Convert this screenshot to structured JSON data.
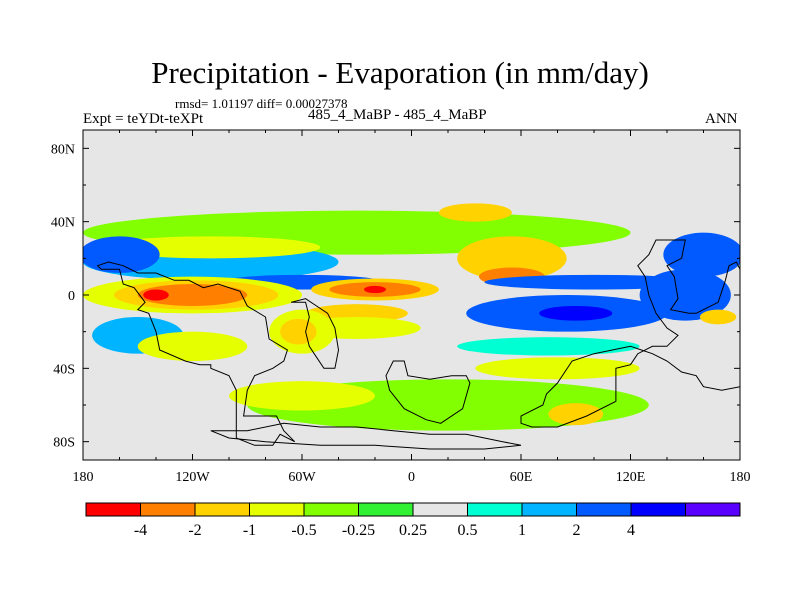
{
  "chart_data": {
    "type": "filled-contour map",
    "title": "Precipitation - Evaporation (in mm/day)",
    "stats_line": "rmsd= 1.01197 diff= 0.00027378",
    "left_label": "Expt = teYDt-teXPt",
    "center_label": "485_4_MaBP - 485_4_MaBP",
    "right_label": "ANN",
    "x_ticks": [
      {
        "lon": -180,
        "label": "180"
      },
      {
        "lon": -120,
        "label": "120W"
      },
      {
        "lon": -60,
        "label": "60W"
      },
      {
        "lon": 0,
        "label": "0"
      },
      {
        "lon": 60,
        "label": "60E"
      },
      {
        "lon": 120,
        "label": "120E"
      },
      {
        "lon": 180,
        "label": "180"
      }
    ],
    "y_ticks": [
      {
        "lat": 80,
        "label": "80N"
      },
      {
        "lat": 40,
        "label": "40N"
      },
      {
        "lat": 0,
        "label": "0"
      },
      {
        "lat": -40,
        "label": "40S"
      },
      {
        "lat": -80,
        "label": "80S"
      }
    ],
    "xlim": [
      -180,
      180
    ],
    "ylim": [
      -90,
      90
    ],
    "colorbar": {
      "colors": [
        "#ff0000",
        "#ff8000",
        "#ffd200",
        "#e6ff00",
        "#82ff00",
        "#32f032",
        "#e6e6e6",
        "#00ffd2",
        "#00b4ff",
        "#005aff",
        "#0000ff",
        "#5a00ff"
      ],
      "labels": [
        "-4",
        "-2",
        "-1",
        "-0.5",
        "-0.25",
        "0.25",
        "0.5",
        "1",
        "2",
        "4"
      ]
    },
    "regions": [
      {
        "name": "region-nh-green-band",
        "level": -0.25,
        "lon": -30,
        "lat": 34,
        "rlon": 150,
        "rlat": 12
      },
      {
        "name": "region-nh-tropics-blue",
        "level": 1,
        "lon": -110,
        "lat": 18,
        "rlon": 70,
        "rlat": 10
      },
      {
        "name": "region-nh-subtropic-green",
        "level": -0.5,
        "lon": -110,
        "lat": 26,
        "rlon": 60,
        "rlat": 6
      },
      {
        "name": "region-np-blue-west",
        "level": 2,
        "lon": -160,
        "lat": 22,
        "rlon": 22,
        "rlat": 10
      },
      {
        "name": "region-np-blue-east",
        "level": 2,
        "lon": 160,
        "lat": 22,
        "rlon": 22,
        "rlat": 12
      },
      {
        "name": "region-north-atlantic-yellow",
        "level": -1,
        "lon": 55,
        "lat": 20,
        "rlon": 30,
        "rlat": 12
      },
      {
        "name": "region-north-atlantic-orange",
        "level": -2,
        "lon": 55,
        "lat": 10,
        "rlon": 18,
        "rlat": 5
      },
      {
        "name": "region-arctic-yellow",
        "level": -1,
        "lon": 35,
        "lat": 45,
        "rlon": 20,
        "rlat": 5
      },
      {
        "name": "region-itcz-blue-west",
        "level": 2,
        "lon": -60,
        "lat": 7,
        "rlon": 45,
        "rlat": 4
      },
      {
        "name": "region-itcz-blue-east",
        "level": 2,
        "lon": 100,
        "lat": 7,
        "rlon": 60,
        "rlat": 4
      },
      {
        "name": "region-pacific-dry-green",
        "level": -0.5,
        "lon": -120,
        "lat": 0,
        "rlon": 60,
        "rlat": 10
      },
      {
        "name": "region-pacific-dry-yellow",
        "level": -1,
        "lon": -118,
        "lat": 0,
        "rlon": 45,
        "rlat": 8
      },
      {
        "name": "region-pacific-dry-orange",
        "level": -2,
        "lon": -120,
        "lat": 0,
        "rlon": 30,
        "rlat": 6
      },
      {
        "name": "region-pacific-dry-red",
        "level": -4,
        "lon": -140,
        "lat": 0,
        "rlon": 7,
        "rlat": 3
      },
      {
        "name": "region-atlantic-eq-yellow",
        "level": -1,
        "lon": -20,
        "lat": 3,
        "rlon": 35,
        "rlat": 6
      },
      {
        "name": "region-atlantic-eq-orange",
        "level": -2,
        "lon": -20,
        "lat": 3,
        "rlon": 25,
        "rlat": 4
      },
      {
        "name": "region-atlantic-eq-red",
        "level": -4,
        "lon": -20,
        "lat": 3,
        "rlon": 6,
        "rlat": 2
      },
      {
        "name": "region-south-atlantic-yellow",
        "level": -1,
        "lon": -30,
        "lat": -10,
        "rlon": 28,
        "rlat": 5
      },
      {
        "name": "region-south-atlantic-green",
        "level": -0.5,
        "lon": -30,
        "lat": -18,
        "rlon": 35,
        "rlat": 6
      },
      {
        "name": "region-indian-blue",
        "level": 2,
        "lon": 85,
        "lat": -10,
        "rlon": 55,
        "rlat": 10
      },
      {
        "name": "region-indian-darkblue",
        "level": 3,
        "lon": 90,
        "lat": -10,
        "rlon": 38,
        "rlat": 7
      },
      {
        "name": "region-indian-purple",
        "level": 5,
        "lon": 90,
        "lat": -10,
        "rlon": 20,
        "rlat": 4
      },
      {
        "name": "region-indian-cyan",
        "level": 0.5,
        "lon": 75,
        "lat": -28,
        "rlon": 50,
        "rlat": 5
      },
      {
        "name": "region-south-indian-green",
        "level": -0.5,
        "lon": 80,
        "lat": -40,
        "rlon": 45,
        "rlat": 6
      },
      {
        "name": "region-south-pacific-blue",
        "level": 1,
        "lon": -150,
        "lat": -22,
        "rlon": 25,
        "rlat": 10
      },
      {
        "name": "region-south-pacific-green",
        "level": -0.5,
        "lon": -120,
        "lat": -28,
        "rlon": 30,
        "rlat": 8
      },
      {
        "name": "region-southern-ocean-green",
        "level": -0.25,
        "lon": 20,
        "lat": -60,
        "rlon": 110,
        "rlat": 14
      },
      {
        "name": "region-southern-ocean-yellow",
        "level": -1,
        "lon": 90,
        "lat": -65,
        "rlon": 15,
        "rlat": 6
      },
      {
        "name": "region-south-mid-green",
        "level": -0.5,
        "lon": -60,
        "lat": -55,
        "rlon": 40,
        "rlat": 8
      },
      {
        "name": "region-africa-green",
        "level": -0.5,
        "lon": -60,
        "lat": -20,
        "rlon": 18,
        "rlat": 12
      },
      {
        "name": "region-africa-yellow",
        "level": -1,
        "lon": -62,
        "lat": -20,
        "rlon": 10,
        "rlat": 7
      },
      {
        "name": "region-east-pacific-blue",
        "level": 2,
        "lon": 150,
        "lat": 0,
        "rlon": 25,
        "rlat": 14
      },
      {
        "name": "region-east-pacific-yellow",
        "level": -1,
        "lon": 168,
        "lat": -12,
        "rlon": 10,
        "rlat": 4
      }
    ],
    "continents": [
      {
        "name": "continent-north-america",
        "pts": [
          [
            -170,
            14
          ],
          [
            -160,
            14
          ],
          [
            -158,
            6
          ],
          [
            -152,
            4
          ],
          [
            -146,
            -4
          ],
          [
            -150,
            -8
          ],
          [
            -144,
            -10
          ],
          [
            -140,
            -20
          ],
          [
            -138,
            -30
          ],
          [
            -124,
            -36
          ],
          [
            -116,
            -38
          ],
          [
            -110,
            -38
          ],
          [
            -110,
            -40
          ],
          [
            -100,
            -44
          ],
          [
            -96,
            -52
          ],
          [
            -96,
            -78
          ],
          [
            -86,
            -82
          ],
          [
            -76,
            -82
          ],
          [
            -72,
            -76
          ],
          [
            -64,
            -80
          ],
          [
            -70,
            -74
          ],
          [
            -74,
            -66
          ],
          [
            -92,
            -66
          ],
          [
            -90,
            -52
          ],
          [
            -86,
            -44
          ],
          [
            -76,
            -40
          ],
          [
            -70,
            -36
          ],
          [
            -68,
            -30
          ],
          [
            -78,
            -24
          ],
          [
            -80,
            -12
          ],
          [
            -90,
            -6
          ],
          [
            -94,
            2
          ],
          [
            -106,
            6
          ],
          [
            -114,
            4
          ],
          [
            -122,
            8
          ],
          [
            -130,
            8
          ],
          [
            -140,
            12
          ],
          [
            -150,
            12
          ],
          [
            -158,
            16
          ],
          [
            -166,
            18
          ],
          [
            -172,
            16
          ]
        ]
      },
      {
        "name": "continent-south-continent",
        "pts": [
          [
            -66,
            -4
          ],
          [
            -58,
            -4
          ],
          [
            -56,
            -12
          ],
          [
            -58,
            -20
          ],
          [
            -56,
            -28
          ],
          [
            -52,
            -34
          ],
          [
            -48,
            -40
          ],
          [
            -42,
            -40
          ],
          [
            -40,
            -30
          ],
          [
            -42,
            -18
          ],
          [
            -46,
            -10
          ],
          [
            -52,
            -6
          ],
          [
            -58,
            -2
          ]
        ]
      },
      {
        "name": "continent-antarctic-fragment",
        "pts": [
          [
            -10,
            -36
          ],
          [
            -4,
            -36
          ],
          [
            -2,
            -44
          ],
          [
            10,
            -46
          ],
          [
            22,
            -44
          ],
          [
            30,
            -44
          ],
          [
            32,
            -48
          ],
          [
            28,
            -62
          ],
          [
            16,
            -70
          ],
          [
            8,
            -68
          ],
          [
            -4,
            -62
          ],
          [
            -12,
            -52
          ],
          [
            -14,
            -44
          ]
        ]
      },
      {
        "name": "continent-eastern-landmass",
        "pts": [
          [
            134,
            30
          ],
          [
            150,
            30
          ],
          [
            148,
            20
          ],
          [
            140,
            16
          ],
          [
            144,
            10
          ],
          [
            146,
            -2
          ],
          [
            142,
            -8
          ],
          [
            152,
            -10
          ],
          [
            156,
            -10
          ],
          [
            168,
            -4
          ],
          [
            170,
            2
          ],
          [
            172,
            8
          ],
          [
            174,
            16
          ],
          [
            178,
            18
          ],
          [
            180,
            14
          ],
          [
            180,
            -50
          ],
          [
            170,
            -52
          ],
          [
            160,
            -50
          ],
          [
            156,
            -44
          ],
          [
            148,
            -42
          ],
          [
            140,
            -36
          ],
          [
            132,
            -32
          ],
          [
            120,
            -28
          ],
          [
            110,
            -30
          ],
          [
            100,
            -32
          ],
          [
            88,
            -36
          ],
          [
            80,
            -48
          ],
          [
            74,
            -54
          ],
          [
            72,
            -60
          ],
          [
            64,
            -64
          ],
          [
            60,
            -66
          ],
          [
            60,
            -70
          ],
          [
            66,
            -72
          ],
          [
            80,
            -72
          ],
          [
            96,
            -66
          ],
          [
            112,
            -58
          ],
          [
            112,
            -40
          ],
          [
            120,
            -38
          ],
          [
            124,
            -32
          ],
          [
            132,
            -28
          ],
          [
            140,
            -28
          ],
          [
            146,
            -22
          ],
          [
            140,
            -18
          ],
          [
            134,
            -10
          ],
          [
            130,
            0
          ],
          [
            128,
            10
          ],
          [
            124,
            16
          ],
          [
            130,
            22
          ]
        ]
      },
      {
        "name": "continent-polar-south",
        "pts": [
          [
            -110,
            -74
          ],
          [
            -90,
            -74
          ],
          [
            -70,
            -70
          ],
          [
            -50,
            -72
          ],
          [
            -30,
            -72
          ],
          [
            -10,
            -74
          ],
          [
            10,
            -76
          ],
          [
            30,
            -76
          ],
          [
            50,
            -80
          ],
          [
            60,
            -82
          ],
          [
            40,
            -84
          ],
          [
            10,
            -84
          ],
          [
            -20,
            -82
          ],
          [
            -50,
            -82
          ],
          [
            -80,
            -80
          ],
          [
            -100,
            -78
          ]
        ]
      }
    ]
  }
}
